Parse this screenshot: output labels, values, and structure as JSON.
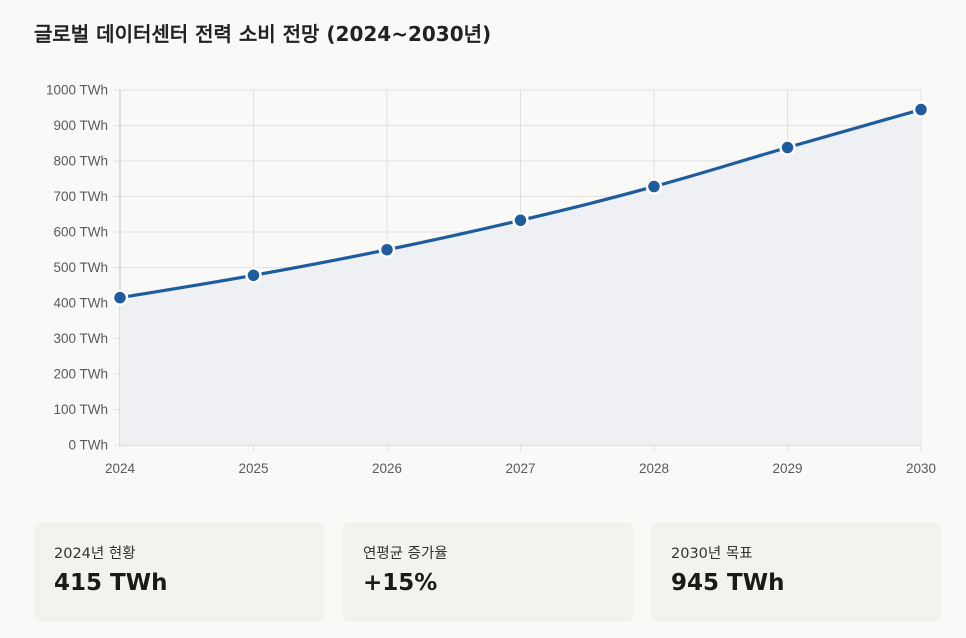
{
  "chart_data": {
    "type": "area",
    "title": "글로벌 데이터센터 전력 소비 전망 (2024~2030년)",
    "x": [
      "2024",
      "2025",
      "2026",
      "2027",
      "2028",
      "2029",
      "2030"
    ],
    "series": [
      {
        "values": [
          415,
          478,
          550,
          633,
          728,
          838,
          945
        ]
      }
    ],
    "yticks": [
      "0 TWh",
      "100 TWh",
      "200 TWh",
      "300 TWh",
      "400 TWh",
      "500 TWh",
      "600 TWh",
      "700 TWh",
      "800 TWh",
      "900 TWh",
      "1000 TWh"
    ],
    "ylim": [
      0,
      1000
    ],
    "grid": true,
    "legend": "none",
    "colors": {
      "line": "#1f5c9e",
      "fill": "#eef0f4",
      "grid": "#e1e1e1",
      "axis": "#c4c4c4",
      "point_stroke": "#ffffff"
    }
  },
  "stats": [
    {
      "label": "2024년 현황",
      "value": "415 TWh"
    },
    {
      "label": "연평균 증가율",
      "value": "+15%"
    },
    {
      "label": "2030년 목표",
      "value": "945 TWh"
    }
  ]
}
